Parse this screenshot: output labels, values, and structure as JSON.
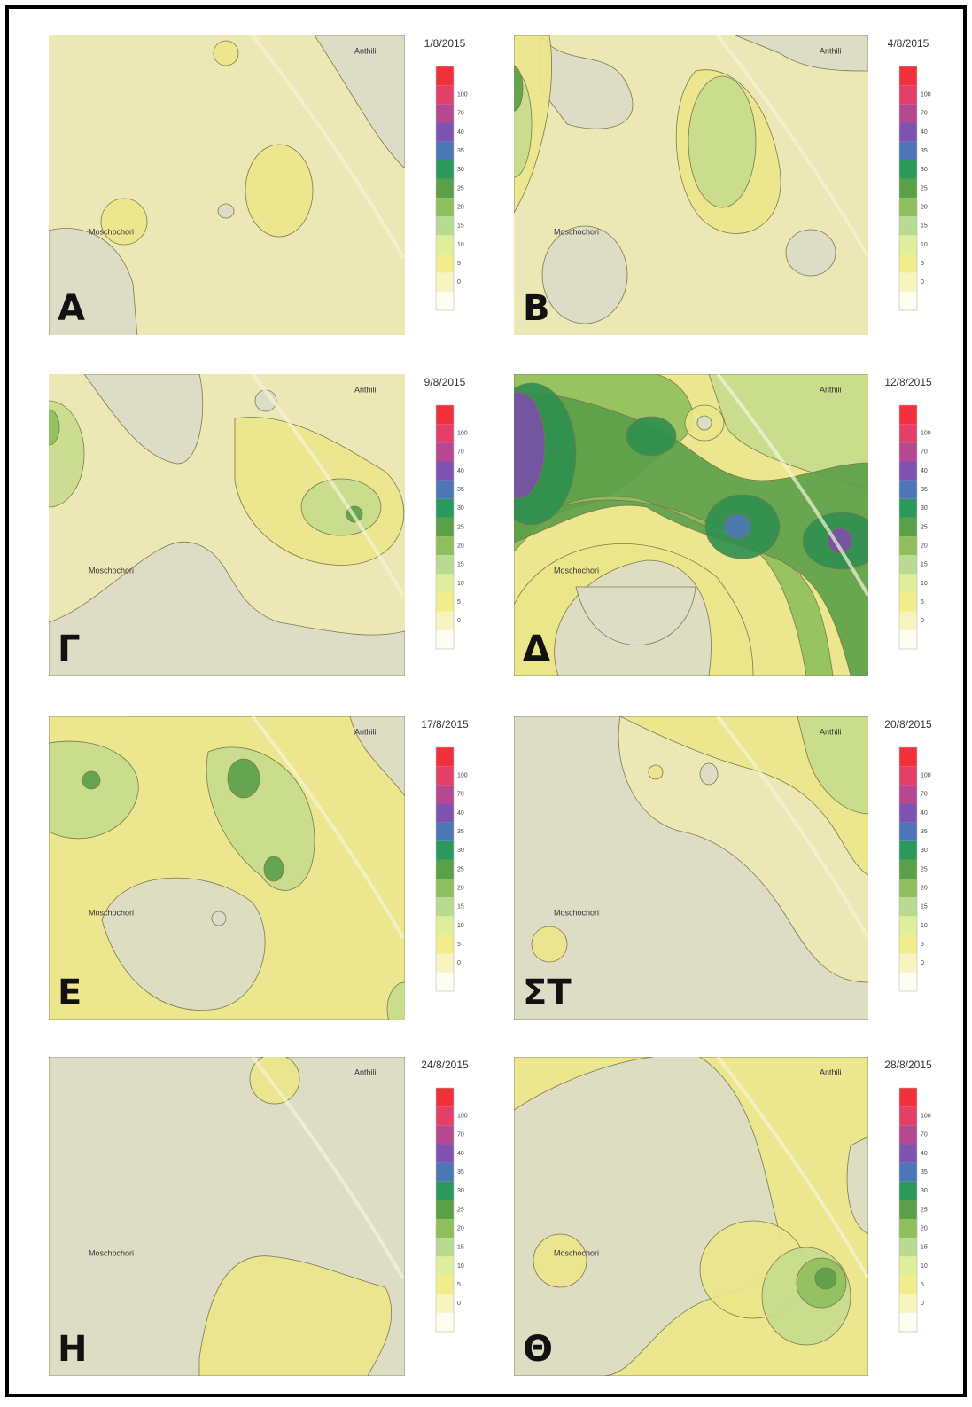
{
  "panels": [
    {
      "label": "Α",
      "date": "1/8/2015",
      "places": [
        "Anthili",
        "Moschochori"
      ]
    },
    {
      "label": "Β",
      "date": "4/8/2015",
      "places": [
        "Anthili",
        "Moschochori"
      ]
    },
    {
      "label": "Γ",
      "date": "9/8/2015",
      "places": [
        "Anthili",
        "Moschochori"
      ]
    },
    {
      "label": "Δ",
      "date": "12/8/2015",
      "places": [
        "Anthili",
        "Moschochori"
      ]
    },
    {
      "label": "Ε",
      "date": "17/8/2015",
      "places": [
        "Anthili",
        "Moschochori"
      ]
    },
    {
      "label": "ΣΤ",
      "date": "20/8/2015",
      "places": [
        "Anthili",
        "Moschochori"
      ]
    },
    {
      "label": "Η",
      "date": "24/8/2015",
      "places": [
        "Anthili",
        "Moschochori"
      ]
    },
    {
      "label": "Θ",
      "date": "28/8/2015",
      "places": [
        "Anthili",
        "Moschochori"
      ]
    }
  ],
  "legend": {
    "labels": [
      "100",
      "70",
      "40",
      "35",
      "30",
      "25",
      "20",
      "15",
      "10",
      "5",
      "0"
    ]
  }
}
